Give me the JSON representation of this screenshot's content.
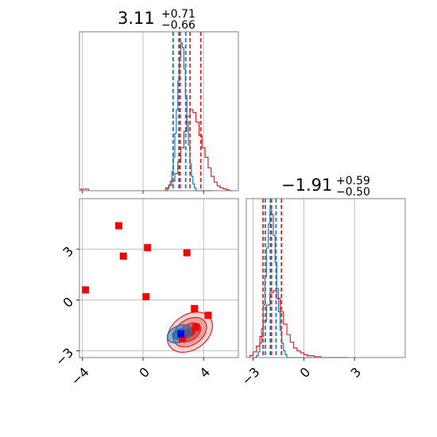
{
  "chart_data": [
    {
      "type": "histogram",
      "panel": "marginal-x",
      "title": {
        "value": "3.11",
        "plus": "+0.71",
        "minus": "−0.66"
      },
      "xlim": [
        -4.2,
        6.3
      ],
      "grid": true,
      "series": [
        {
          "color": "#1f77b4",
          "bin_start": 1.5,
          "bin_width": 0.1,
          "counts": [
            0,
            2,
            5,
            10,
            20,
            35,
            60,
            85,
            115,
            140,
            155,
            150,
            128,
            100,
            72,
            48,
            28,
            15,
            7,
            3,
            0,
            0,
            0,
            0,
            0,
            0,
            0,
            0,
            0,
            0,
            0
          ]
        },
        {
          "color": "#d62728",
          "bin_start": 1.5,
          "bin_width": 0.2,
          "counts": [
            3,
            6,
            10,
            18,
            30,
            45,
            62,
            78,
            85,
            82,
            72,
            58,
            45,
            35,
            24,
            15,
            9,
            5,
            3,
            2,
            1,
            0
          ]
        }
      ],
      "quantile_lines": [
        {
          "color": "#1f77b4",
          "x": [
            1.99,
            2.37,
            2.82
          ]
        },
        {
          "color": "#d62728",
          "x": [
            2.45,
            3.11,
            3.82
          ]
        }
      ]
    },
    {
      "type": "contour",
      "panel": "joint",
      "xlim": [
        -4.2,
        6.3
      ],
      "ylim": [
        -3.4,
        6.0
      ],
      "xticks": [
        "−4",
        "0",
        "4"
      ],
      "yticks": [
        "−3",
        "0",
        "3"
      ],
      "grid": true,
      "red_contour": {
        "center": [
          3.1,
          -1.9
        ],
        "levels": 3
      },
      "blue_contour": {
        "center": [
          2.4,
          -2.0
        ],
        "levels": 2
      },
      "red_points": [
        [
          -3.8,
          0.6
        ],
        [
          -1.6,
          4.4
        ],
        [
          -1.3,
          2.6
        ],
        [
          0.3,
          3.1
        ],
        [
          0.2,
          0.2
        ],
        [
          2.9,
          2.8
        ],
        [
          3.4,
          -0.5
        ],
        [
          4.3,
          -0.9
        ],
        [
          3.5,
          -1.6
        ],
        [
          2.6,
          -2.3
        ]
      ],
      "blue_point": [
        2.5,
        -2.0
      ]
    },
    {
      "type": "histogram",
      "panel": "marginal-y",
      "title": {
        "value": "−1.91",
        "plus": "+0.59",
        "minus": "−0.50"
      },
      "xlim": [
        -3.4,
        6.0
      ],
      "xticks": [
        "−3",
        "0",
        "3"
      ],
      "grid": true,
      "series": [
        {
          "color": "#1f77b4",
          "bin_start": -3.0,
          "bin_width": 0.1,
          "counts": [
            0,
            0,
            2,
            6,
            15,
            30,
            55,
            85,
            115,
            140,
            155,
            150,
            128,
            100,
            72,
            48,
            28,
            15,
            7,
            3,
            0,
            0,
            0,
            0,
            0,
            0,
            0,
            0,
            0,
            0,
            0,
            0,
            0,
            0,
            0
          ]
        },
        {
          "color": "#d62728",
          "bin_start": -3.2,
          "bin_width": 0.2,
          "counts": [
            2,
            6,
            12,
            22,
            38,
            55,
            68,
            70,
            62,
            48,
            35,
            24,
            16,
            10,
            7,
            5,
            3,
            2,
            2,
            1,
            1,
            0,
            0,
            0,
            0,
            0,
            0,
            0,
            0
          ]
        }
      ],
      "quantile_lines": [
        {
          "color": "#1f77b4",
          "x": [
            -2.28,
            -1.98,
            -1.64
          ]
        },
        {
          "color": "#d62728",
          "x": [
            -2.41,
            -1.91,
            -1.32
          ]
        }
      ]
    }
  ]
}
